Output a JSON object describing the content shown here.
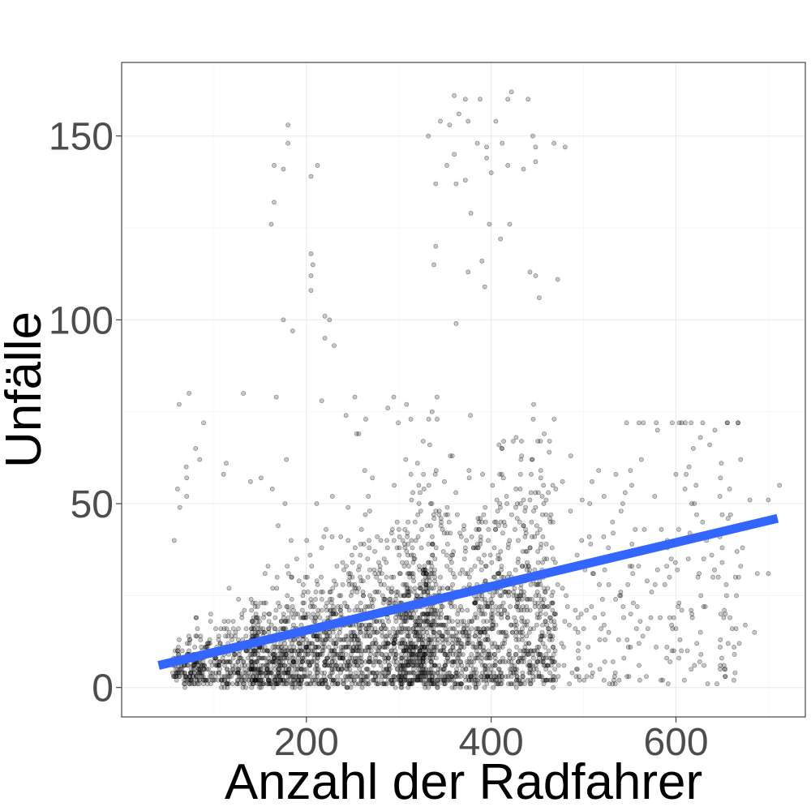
{
  "chart_data": {
    "type": "scatter",
    "xlabel": "Anzahl der Radfahrer",
    "ylabel": "Unfälle",
    "xlim": [
      0,
      740
    ],
    "ylim": [
      -8,
      170
    ],
    "x_ticks": [
      200,
      400,
      600
    ],
    "y_ticks": [
      0,
      50,
      100,
      150
    ],
    "grid": true,
    "fit_line": {
      "color": "#3366ff",
      "x": [
        40,
        710
      ],
      "y": [
        6,
        46
      ]
    },
    "point_color": "#000000",
    "n_points_approx": 3500,
    "points_note": "dense cloud; representative points reproduced",
    "notable_points": [
      {
        "x": 180,
        "y": 153
      },
      {
        "x": 180,
        "y": 148
      },
      {
        "x": 165,
        "y": 142
      },
      {
        "x": 175,
        "y": 141
      },
      {
        "x": 205,
        "y": 139
      },
      {
        "x": 212,
        "y": 142
      },
      {
        "x": 165,
        "y": 132
      },
      {
        "x": 162,
        "y": 126
      },
      {
        "x": 205,
        "y": 118
      },
      {
        "x": 207,
        "y": 115
      },
      {
        "x": 205,
        "y": 112
      },
      {
        "x": 205,
        "y": 108
      },
      {
        "x": 175,
        "y": 100
      },
      {
        "x": 220,
        "y": 101
      },
      {
        "x": 225,
        "y": 100
      },
      {
        "x": 185,
        "y": 97
      },
      {
        "x": 220,
        "y": 95
      },
      {
        "x": 230,
        "y": 93
      },
      {
        "x": 360,
        "y": 161
      },
      {
        "x": 372,
        "y": 160
      },
      {
        "x": 388,
        "y": 160
      },
      {
        "x": 422,
        "y": 162
      },
      {
        "x": 418,
        "y": 160
      },
      {
        "x": 440,
        "y": 160
      },
      {
        "x": 365,
        "y": 156
      },
      {
        "x": 375,
        "y": 154
      },
      {
        "x": 405,
        "y": 154
      },
      {
        "x": 345,
        "y": 154
      },
      {
        "x": 355,
        "y": 153
      },
      {
        "x": 332,
        "y": 150
      },
      {
        "x": 385,
        "y": 148
      },
      {
        "x": 395,
        "y": 147
      },
      {
        "x": 412,
        "y": 148
      },
      {
        "x": 445,
        "y": 150
      },
      {
        "x": 448,
        "y": 147
      },
      {
        "x": 468,
        "y": 148
      },
      {
        "x": 480,
        "y": 147
      },
      {
        "x": 360,
        "y": 145
      },
      {
        "x": 395,
        "y": 144
      },
      {
        "x": 400,
        "y": 140
      },
      {
        "x": 418,
        "y": 142
      },
      {
        "x": 435,
        "y": 141
      },
      {
        "x": 448,
        "y": 143
      },
      {
        "x": 352,
        "y": 142
      },
      {
        "x": 340,
        "y": 137
      },
      {
        "x": 362,
        "y": 137
      },
      {
        "x": 372,
        "y": 138
      },
      {
        "x": 378,
        "y": 129
      },
      {
        "x": 398,
        "y": 126
      },
      {
        "x": 420,
        "y": 126
      },
      {
        "x": 410,
        "y": 122
      },
      {
        "x": 340,
        "y": 120
      },
      {
        "x": 338,
        "y": 115
      },
      {
        "x": 390,
        "y": 116
      },
      {
        "x": 442,
        "y": 113
      },
      {
        "x": 375,
        "y": 113
      },
      {
        "x": 448,
        "y": 112
      },
      {
        "x": 393,
        "y": 109
      },
      {
        "x": 472,
        "y": 111
      },
      {
        "x": 452,
        "y": 106
      },
      {
        "x": 362,
        "y": 99
      },
      {
        "x": 560,
        "y": 72
      },
      {
        "x": 580,
        "y": 70
      },
      {
        "x": 600,
        "y": 58
      },
      {
        "x": 620,
        "y": 50
      },
      {
        "x": 680,
        "y": 51
      },
      {
        "x": 700,
        "y": 51
      },
      {
        "x": 712,
        "y": 55
      },
      {
        "x": 650,
        "y": 47
      },
      {
        "x": 640,
        "y": 42
      },
      {
        "x": 615,
        "y": 42
      },
      {
        "x": 650,
        "y": 38
      },
      {
        "x": 672,
        "y": 38
      },
      {
        "x": 590,
        "y": 33
      },
      {
        "x": 630,
        "y": 35
      },
      {
        "x": 670,
        "y": 33
      },
      {
        "x": 688,
        "y": 31
      },
      {
        "x": 700,
        "y": 31
      },
      {
        "x": 675,
        "y": 17
      },
      {
        "x": 665,
        "y": 16
      },
      {
        "x": 685,
        "y": 15
      },
      {
        "x": 648,
        "y": 6
      },
      {
        "x": 652,
        "y": 6
      },
      {
        "x": 620,
        "y": 6
      },
      {
        "x": 590,
        "y": 8
      },
      {
        "x": 600,
        "y": 16
      },
      {
        "x": 560,
        "y": 12
      }
    ]
  }
}
